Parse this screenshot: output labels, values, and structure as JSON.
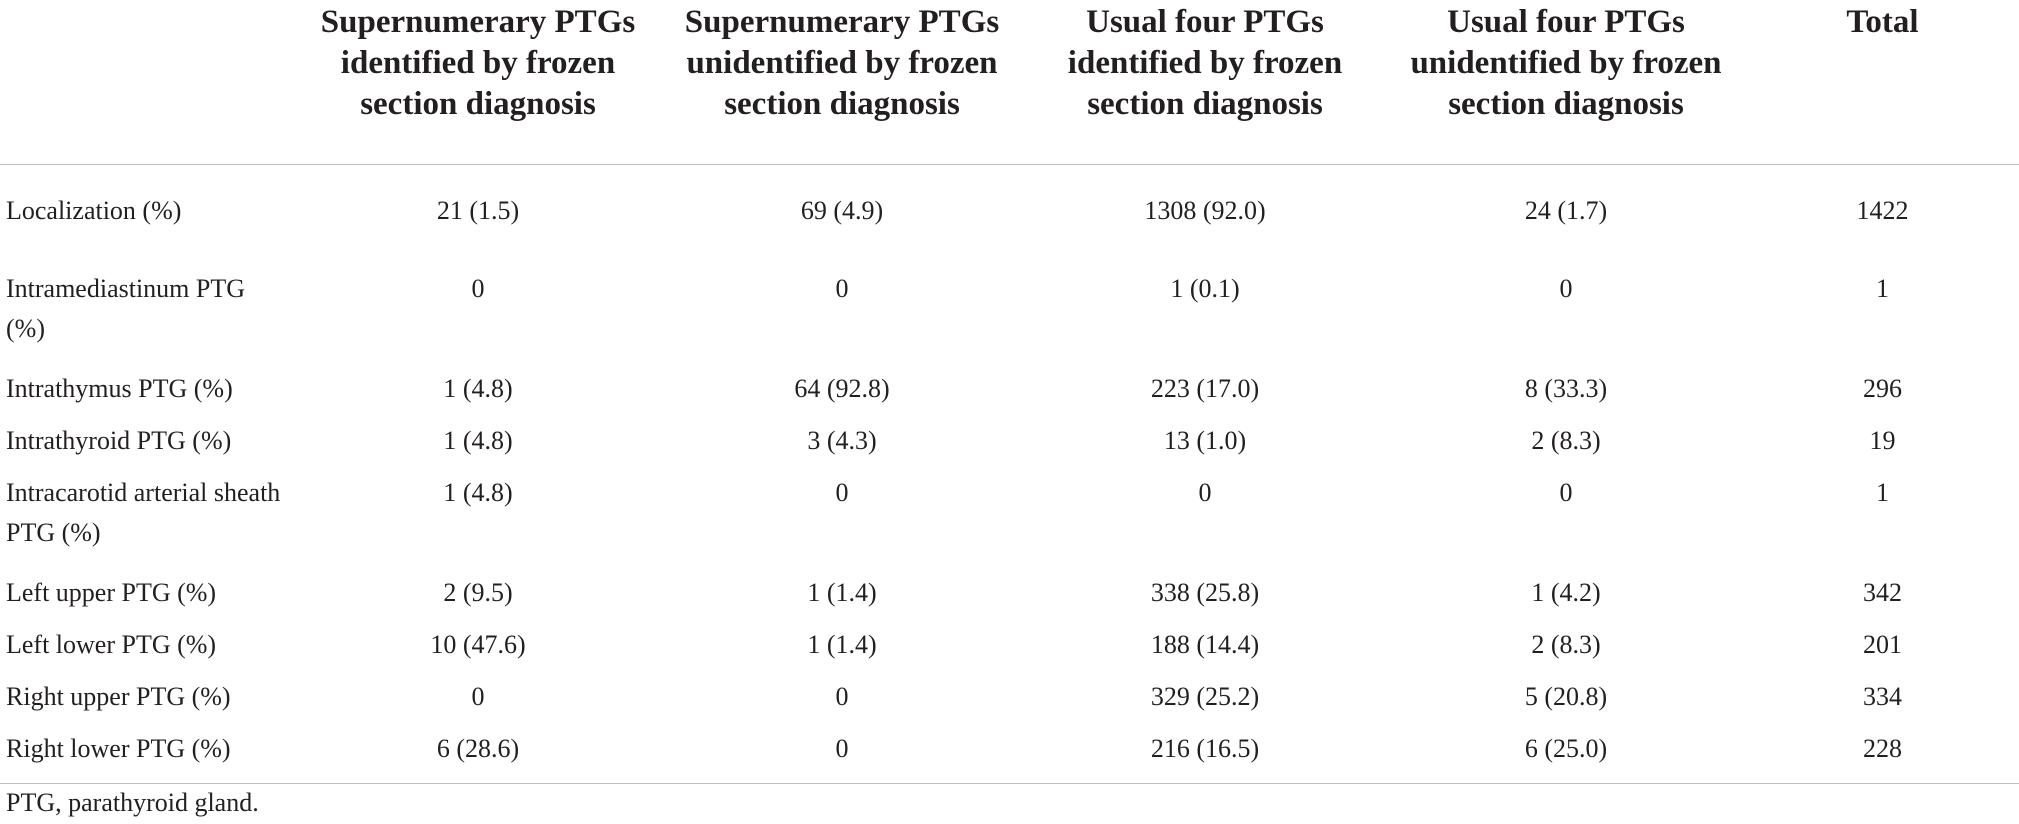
{
  "table": {
    "columns": [
      "",
      "Supernumerary PTGs identified by frozen section diagnosis",
      "Supernumerary PTGs unidentified by frozen section diagnosis",
      "Usual four PTGs identified by frozen section diagnosis",
      "Usual four PTGs unidentified by frozen section diagnosis",
      "Total"
    ],
    "rows": [
      [
        "Localization (%)",
        "21 (1.5)",
        "69 (4.9)",
        "1308 (92.0)",
        "24 (1.7)",
        "1422"
      ],
      [
        "Intramediastinum PTG (%)",
        "0",
        "0",
        "1 (0.1)",
        "0",
        "1"
      ],
      [
        "Intrathymus PTG (%)",
        "1 (4.8)",
        "64 (92.8)",
        "223 (17.0)",
        "8 (33.3)",
        "296"
      ],
      [
        "Intrathyroid PTG (%)",
        "1 (4.8)",
        "3 (4.3)",
        "13 (1.0)",
        "2 (8.3)",
        "19"
      ],
      [
        "Intracarotid arterial sheath PTG (%)",
        "1 (4.8)",
        "0",
        "0",
        "0",
        "1"
      ],
      [
        "Left upper PTG (%)",
        "2 (9.5)",
        "1 (1.4)",
        "338 (25.8)",
        "1 (4.2)",
        "342"
      ],
      [
        "Left lower PTG (%)",
        "10 (47.6)",
        "1 (1.4)",
        "188 (14.4)",
        "2 (8.3)",
        "201"
      ],
      [
        "Right upper PTG (%)",
        "0",
        "0",
        "329 (25.2)",
        "5 (20.8)",
        "334"
      ],
      [
        "Right lower PTG (%)",
        "6 (28.6)",
        "0",
        "216 (16.5)",
        "6 (25.0)",
        "228"
      ]
    ]
  },
  "footnote": "PTG, parathyroid gland."
}
